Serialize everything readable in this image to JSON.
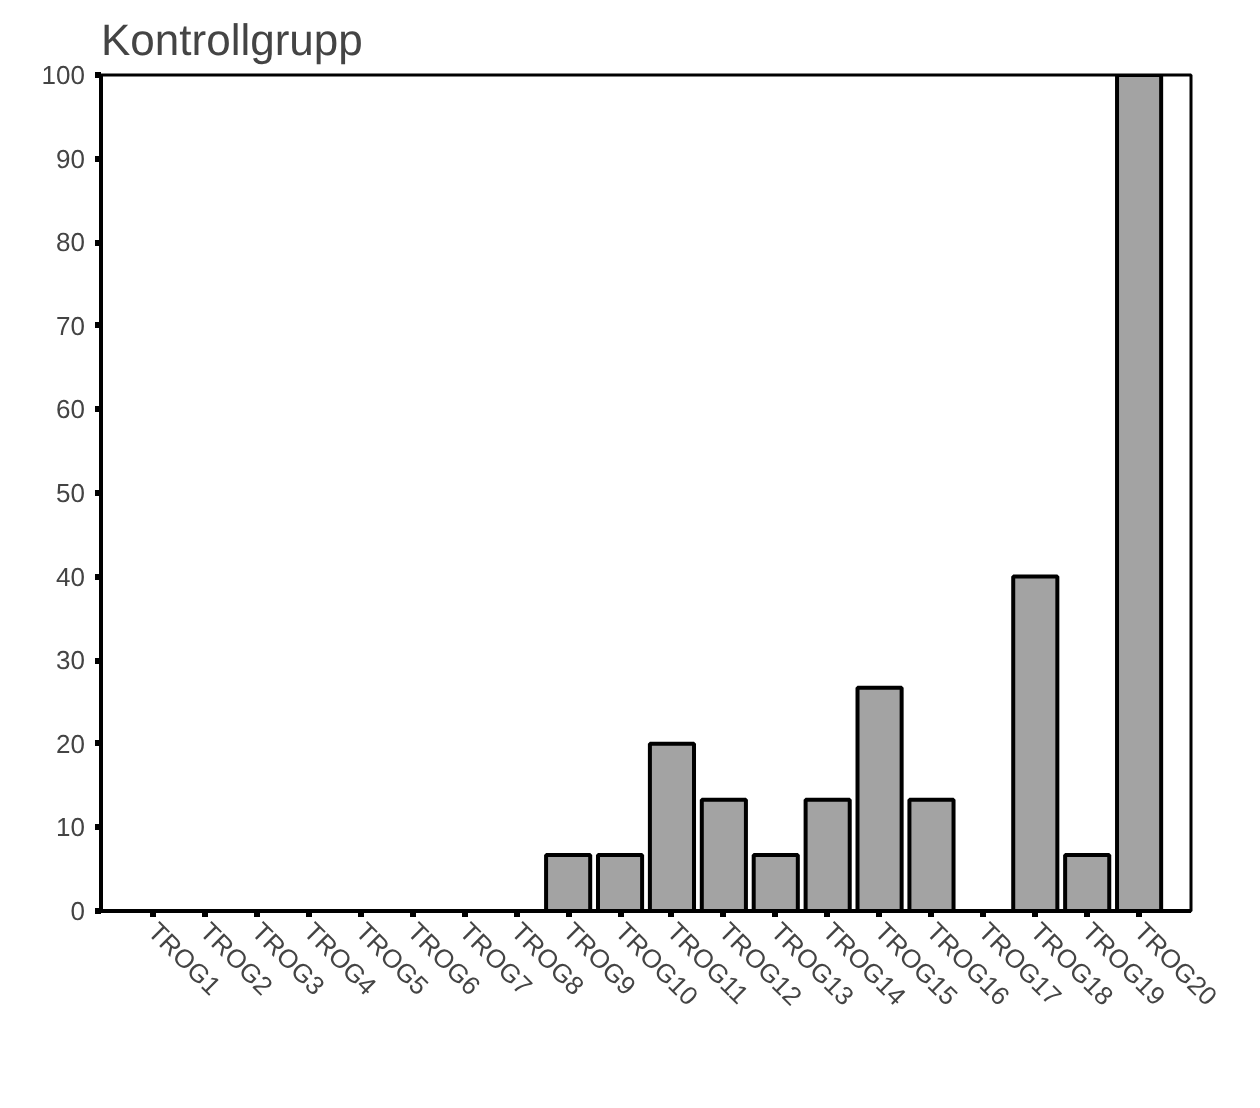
{
  "chart_data": {
    "type": "bar",
    "title": "Kontrollgrupp",
    "categories": [
      "TROG1",
      "TROG2",
      "TROG3",
      "TROG4",
      "TROG5",
      "TROG6",
      "TROG7",
      "TROG8",
      "TROG9",
      "TROG10",
      "TROG11",
      "TROG12",
      "TROG13",
      "TROG14",
      "TROG15",
      "TROG16",
      "TROG17",
      "TROG18",
      "TROG19",
      "TROG20"
    ],
    "values": [
      null,
      null,
      null,
      null,
      null,
      null,
      null,
      null,
      6.7,
      6.7,
      20,
      13.3,
      6.7,
      13.3,
      26.7,
      13.3,
      null,
      40,
      6.7,
      100
    ],
    "color": "#a3a3a3",
    "ylim": [
      0,
      100
    ],
    "yticks": [
      0,
      10,
      20,
      30,
      40,
      50,
      60,
      70,
      80,
      90,
      100
    ],
    "grid": false
  }
}
